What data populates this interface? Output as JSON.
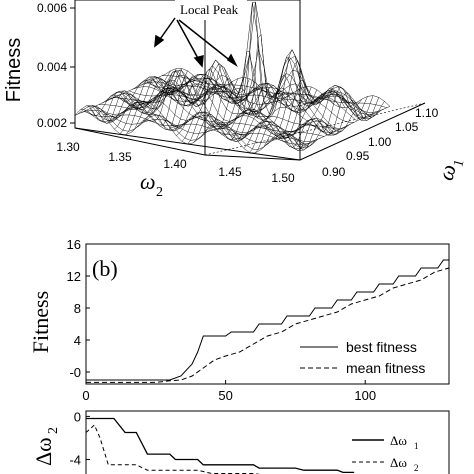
{
  "chart_data": [
    {
      "type": "surface",
      "ylabel": "Fitness",
      "zticks": [
        "0.002",
        "0.004",
        "0.006"
      ],
      "x_axis_label": "ω",
      "x_axis_sub": "2",
      "x_ticks": [
        "1.30",
        "1.35",
        "1.40",
        "1.45",
        "1.50"
      ],
      "y_axis_label": "ω",
      "y_axis_sub": "1",
      "y_ticks": [
        "0.90",
        "0.95",
        "1.00",
        "1.05",
        "1.10"
      ],
      "annotation": "Local Peak"
    },
    {
      "type": "line",
      "panel_label": "(b)",
      "ylabel": "Fitness",
      "xlim": [
        0,
        130
      ],
      "ylim": [
        -1.5,
        16
      ],
      "x_ticks": [
        "0",
        "50",
        "100"
      ],
      "y_ticks": [
        "-0",
        "4",
        "8",
        "12",
        "16"
      ],
      "legend_position": "bottom-right",
      "series": [
        {
          "name": "best fitness",
          "style": "solid",
          "points": [
            [
              0,
              -1
            ],
            [
              30,
              -1
            ],
            [
              34,
              -0.5
            ],
            [
              38,
              1
            ],
            [
              40,
              2.5
            ],
            [
              42,
              4.5
            ],
            [
              50,
              4.5
            ],
            [
              52,
              5
            ],
            [
              60,
              5
            ],
            [
              62,
              6
            ],
            [
              70,
              6
            ],
            [
              72,
              7
            ],
            [
              80,
              7
            ],
            [
              82,
              8
            ],
            [
              88,
              8
            ],
            [
              90,
              9
            ],
            [
              95,
              9
            ],
            [
              97,
              10
            ],
            [
              103,
              10
            ],
            [
              105,
              11
            ],
            [
              110,
              11
            ],
            [
              112,
              12
            ],
            [
              118,
              12
            ],
            [
              120,
              13
            ],
            [
              126,
              13
            ],
            [
              128,
              14
            ],
            [
              130,
              14
            ]
          ]
        },
        {
          "name": "mean fitness",
          "style": "dashed",
          "points": [
            [
              0,
              -1.3
            ],
            [
              25,
              -1.3
            ],
            [
              30,
              -1.1
            ],
            [
              34,
              -1
            ],
            [
              38,
              -0.5
            ],
            [
              42,
              0.5
            ],
            [
              46,
              1.5
            ],
            [
              50,
              2
            ],
            [
              55,
              2.5
            ],
            [
              60,
              3.5
            ],
            [
              65,
              4.5
            ],
            [
              70,
              5
            ],
            [
              75,
              6
            ],
            [
              80,
              6.5
            ],
            [
              85,
              7
            ],
            [
              90,
              7.5
            ],
            [
              95,
              8.5
            ],
            [
              100,
              9
            ],
            [
              105,
              9.5
            ],
            [
              110,
              10.5
            ],
            [
              115,
              11
            ],
            [
              120,
              11.5
            ],
            [
              125,
              12.5
            ],
            [
              130,
              13
            ]
          ]
        }
      ]
    },
    {
      "type": "line",
      "ylabel": "Δω",
      "ylabel_sub": "2",
      "xlim": [
        0,
        130
      ],
      "ylim": [
        -6,
        0.5
      ],
      "y_ticks": [
        "0",
        "-4"
      ],
      "legend_position": "right",
      "series": [
        {
          "name": "Δω",
          "name_sub": "1",
          "style": "solid",
          "points": [
            [
              0,
              -0.2
            ],
            [
              10,
              -0.2
            ],
            [
              14,
              -1.5
            ],
            [
              18,
              -1.5
            ],
            [
              22,
              -3.5
            ],
            [
              30,
              -3.5
            ],
            [
              32,
              -4
            ],
            [
              40,
              -4
            ],
            [
              42,
              -4.5
            ],
            [
              60,
              -4.5
            ],
            [
              62,
              -4.8
            ],
            [
              75,
              -4.8
            ],
            [
              78,
              -5
            ],
            [
              90,
              -5
            ],
            [
              92,
              -5.2
            ],
            [
              96,
              -5.2
            ]
          ]
        },
        {
          "name": "Δω",
          "name_sub": "2",
          "style": "dashed",
          "points": [
            [
              0,
              -1.5
            ],
            [
              3,
              -0.8
            ],
            [
              5,
              -2
            ],
            [
              8,
              -4.5
            ],
            [
              18,
              -4.5
            ],
            [
              22,
              -5
            ],
            [
              40,
              -5
            ],
            [
              45,
              -5.3
            ],
            [
              60,
              -5.3
            ],
            [
              65,
              -5.5
            ],
            [
              80,
              -5.5
            ],
            [
              85,
              -5.7
            ],
            [
              96,
              -5.7
            ]
          ]
        }
      ]
    }
  ]
}
